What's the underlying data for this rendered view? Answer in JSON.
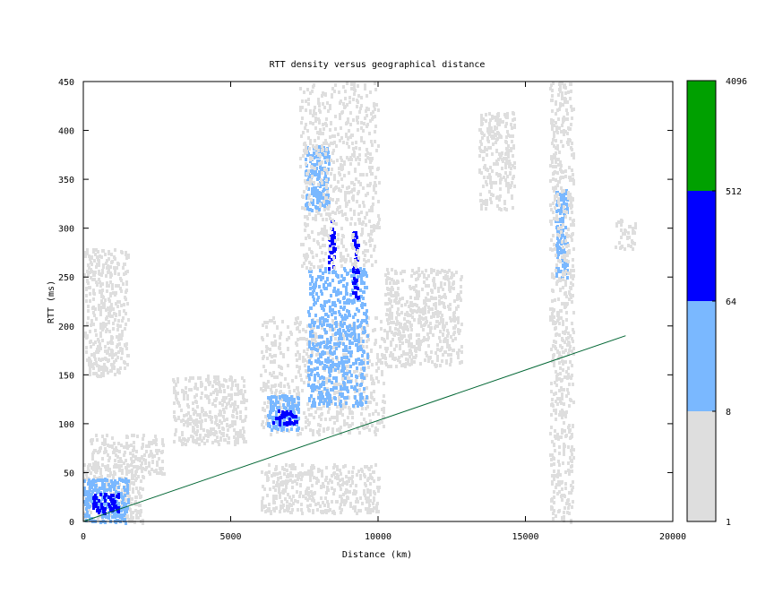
{
  "chart_data": {
    "type": "heatmap",
    "title": "RTT density versus geographical distance",
    "xlabel": "Distance (km)",
    "ylabel": "RTT (ms)",
    "xlim": [
      0,
      20000
    ],
    "ylim": [
      0,
      450
    ],
    "x_ticks": [
      "0",
      "5000",
      "10000",
      "15000",
      "20000"
    ],
    "y_ticks": [
      "0",
      "50",
      "100",
      "150",
      "200",
      "250",
      "300",
      "350",
      "400",
      "450"
    ],
    "colorbar": {
      "scale": "log2",
      "bins": [
        {
          "label": "1",
          "from": 1,
          "to": 8,
          "color": "#dedede"
        },
        {
          "label": "8",
          "from": 8,
          "to": 64,
          "color": "#7ab8ff"
        },
        {
          "label": "64",
          "from": 64,
          "to": 512,
          "color": "#0000ff"
        },
        {
          "label": "512",
          "from": 512,
          "to": 4096,
          "color": "#00a000"
        }
      ],
      "tick_labels": [
        "1",
        "8",
        "64",
        "512",
        "4096"
      ]
    },
    "reference_line": {
      "color": "#006633",
      "points": [
        [
          0,
          0
        ],
        [
          18400,
          190
        ]
      ]
    },
    "clusters": [
      {
        "x": [
          0,
          2000
        ],
        "y": [
          0,
          60
        ],
        "level": 1
      },
      {
        "x": [
          0,
          1500
        ],
        "y": [
          0,
          45
        ],
        "level": 2
      },
      {
        "x": [
          300,
          1200
        ],
        "y": [
          10,
          30
        ],
        "level": 3
      },
      {
        "x": [
          200,
          2700
        ],
        "y": [
          50,
          90
        ],
        "level": 1
      },
      {
        "x": [
          6000,
          10200
        ],
        "y": [
          90,
          210
        ],
        "level": 1
      },
      {
        "x": [
          6200,
          7300
        ],
        "y": [
          95,
          130
        ],
        "level": 2
      },
      {
        "x": [
          6400,
          7200
        ],
        "y": [
          100,
          115
        ],
        "level": 3
      },
      {
        "x": [
          7600,
          9600
        ],
        "y": [
          120,
          260
        ],
        "level": 2
      },
      {
        "x": [
          8300,
          8500
        ],
        "y": [
          260,
          310
        ],
        "level": 3
      },
      {
        "x": [
          9100,
          9300
        ],
        "y": [
          230,
          300
        ],
        "level": 3
      },
      {
        "x": [
          7500,
          8300
        ],
        "y": [
          320,
          385
        ],
        "level": 2
      },
      {
        "x": [
          7300,
          10000
        ],
        "y": [
          260,
          450
        ],
        "level": 1
      },
      {
        "x": [
          10200,
          12800
        ],
        "y": [
          160,
          260
        ],
        "level": 1
      },
      {
        "x": [
          16000,
          16400
        ],
        "y": [
          250,
          340
        ],
        "level": 2
      },
      {
        "x": [
          15800,
          16600
        ],
        "y": [
          0,
          450
        ],
        "level": 1
      },
      {
        "x": [
          18000,
          18700
        ],
        "y": [
          280,
          310
        ],
        "level": 1
      },
      {
        "x": [
          6000,
          10000
        ],
        "y": [
          10,
          60
        ],
        "level": 1
      },
      {
        "x": [
          3000,
          5500
        ],
        "y": [
          80,
          150
        ],
        "level": 1
      },
      {
        "x": [
          0,
          1500
        ],
        "y": [
          150,
          280
        ],
        "level": 1
      },
      {
        "x": [
          13400,
          14600
        ],
        "y": [
          320,
          420
        ],
        "level": 1
      }
    ]
  }
}
